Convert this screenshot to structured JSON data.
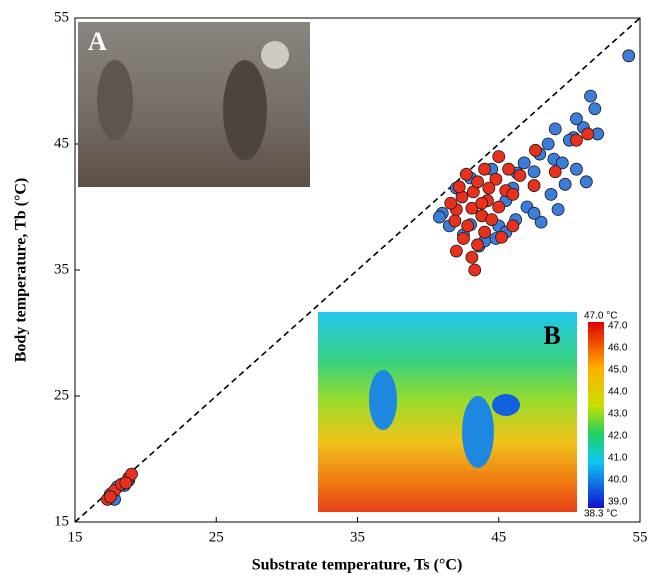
{
  "chart_data": {
    "type": "scatter",
    "xlabel": "Substrate temperature, Ts (°C)",
    "ylabel": "Body temperature, Tb (°C)",
    "xlim": [
      15,
      55
    ],
    "ylim": [
      15,
      55
    ],
    "xticks": [
      15,
      25,
      35,
      45,
      55
    ],
    "yticks": [
      15,
      25,
      35,
      45,
      55
    ],
    "series": [
      {
        "color": "#3b7dd8",
        "x": [
          54.2,
          51.5,
          51.8,
          52,
          51,
          50.5,
          50.3,
          49,
          50,
          48.5,
          48.9,
          49.5,
          50.5,
          51.2,
          49.7,
          48.7,
          49.2,
          47.5,
          47.9,
          46.8,
          46.3,
          46,
          45.5,
          47,
          46.2,
          45,
          44.8,
          42.5,
          41.5,
          41,
          43.6,
          45.5,
          44.5,
          42,
          43,
          48,
          47.5,
          40.8,
          43,
          44,
          17.5,
          18,
          18.5,
          17.8,
          18.8
        ],
        "values": [
          52,
          48.8,
          47.8,
          45.8,
          46.3,
          47,
          45.5,
          46.2,
          45.3,
          45,
          43.8,
          43.5,
          43,
          42,
          41.8,
          41,
          39.8,
          42.8,
          44.2,
          43.5,
          42.7,
          41.5,
          40.5,
          40,
          39,
          38.5,
          37.5,
          37.8,
          38.5,
          39.5,
          36.9,
          38,
          43,
          41.5,
          42.3,
          38.8,
          39.5,
          39.2,
          38.6,
          37.3,
          17.2,
          17.8,
          17.9,
          16.8,
          18.3
        ]
      },
      {
        "color": "#e8301c",
        "x": [
          43.3,
          42,
          42.5,
          43.5,
          44,
          42.8,
          43.8,
          42,
          41.6,
          42.4,
          43.2,
          44.2,
          45,
          45.5,
          44.8,
          43.5,
          42.7,
          44,
          45,
          45.7,
          46.5,
          46,
          44.5,
          43.1,
          42.2,
          43.8,
          46,
          47.5,
          49,
          51.3,
          50.5,
          47.6,
          44.3,
          45.2,
          41.9,
          43.1,
          17.3,
          17.8,
          18.3,
          18.8,
          19,
          17.5,
          18.6
        ],
        "values": [
          35,
          36.5,
          37.5,
          37,
          38,
          38.5,
          39.3,
          39.8,
          40.3,
          40.8,
          41.2,
          40.5,
          40,
          41.3,
          42.2,
          42,
          42.6,
          43,
          44,
          43,
          42.5,
          41,
          39,
          39.9,
          41.6,
          40.3,
          38.5,
          41.7,
          42.8,
          45.8,
          45.3,
          44.5,
          41.5,
          37.6,
          38.9,
          36,
          16.8,
          17.5,
          18,
          18.5,
          18.8,
          17,
          18.1
        ]
      }
    ]
  },
  "inset_a": {
    "label": "A"
  },
  "inset_b": {
    "label": "B",
    "colorbar_max": "47.0 °C",
    "colorbar_min": "38.3 °C",
    "colorbar_ticks": [
      "47.0",
      "46.0",
      "45.0",
      "44.0",
      "43.0",
      "42.0",
      "41.0",
      "40.0",
      "39.0"
    ]
  }
}
